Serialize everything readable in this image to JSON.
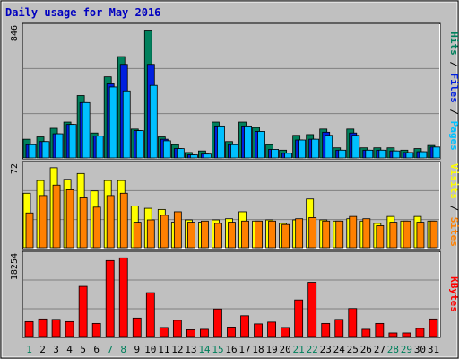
{
  "chart_data": {
    "type": "bar",
    "title": "Daily usage for May 2016",
    "categories": [
      "1",
      "2",
      "3",
      "4",
      "5",
      "6",
      "7",
      "8",
      "9",
      "10",
      "11",
      "12",
      "13",
      "14",
      "15",
      "16",
      "17",
      "18",
      "19",
      "20",
      "21",
      "22",
      "23",
      "24",
      "25",
      "26",
      "27",
      "28",
      "29",
      "30",
      "31"
    ],
    "weekend_days": [
      "1",
      "7",
      "8",
      "14",
      "15",
      "21",
      "22",
      "28",
      "29"
    ],
    "panels": [
      {
        "id": "top",
        "ymax_label": "846",
        "ylim": [
          0,
          846
        ],
        "series": [
          {
            "name": "Hits",
            "color": "#00805c",
            "values": [
              120,
              135,
              190,
              230,
              400,
              160,
              520,
              650,
              185,
              820,
              135,
              85,
              35,
              45,
              230,
              105,
              230,
              195,
              85,
              50,
              145,
              150,
              185,
              65,
              185,
              65,
              65,
              65,
              50,
              60,
              80
            ]
          },
          {
            "name": "Files",
            "color": "#0020e0",
            "values": [
              85,
              105,
              155,
              215,
              355,
              140,
              475,
              600,
              175,
              600,
              120,
              60,
              20,
              25,
              205,
              85,
              205,
              170,
              55,
              30,
              115,
              120,
              165,
              50,
              160,
              50,
              50,
              45,
              35,
              40,
              70
            ]
          },
          {
            "name": "Pages",
            "color": "#00c0ff",
            "values": [
              85,
              105,
              155,
              215,
              355,
              140,
              455,
              430,
              175,
              465,
              110,
              60,
              20,
              25,
              205,
              85,
              205,
              170,
              55,
              30,
              115,
              120,
              145,
              50,
              145,
              50,
              50,
              45,
              35,
              40,
              70
            ]
          }
        ],
        "legend": [
          {
            "text": "Hits",
            "color": "#00805c"
          },
          {
            "text": " / ",
            "color": "#000000"
          },
          {
            "text": "Files",
            "color": "#0020e0"
          },
          {
            "text": " / ",
            "color": "#000000"
          },
          {
            "text": "Pages",
            "color": "#00c0ff"
          }
        ]
      },
      {
        "id": "middle",
        "ymax_label": "72",
        "ylim": [
          0,
          72
        ],
        "series": [
          {
            "name": "Visits",
            "color": "#ffff00",
            "values": [
              47,
              58,
              69,
              59,
              64,
              49,
              58,
              58,
              36,
              34,
              33,
              22,
              24,
              22,
              24,
              25,
              31,
              23,
              24,
              21,
              24,
              42,
              24,
              23,
              25,
              23,
              21,
              27,
              23,
              27,
              23
            ]
          },
          {
            "name": "Sites",
            "color": "#ff8000",
            "values": [
              30,
              45,
              54,
              50,
              43,
              35,
              45,
              47,
              22,
              24,
              28,
              31,
              22,
              23,
              21,
              22,
              23,
              23,
              23,
              20,
              25,
              26,
              23,
              23,
              27,
              25,
              19,
              22,
              23,
              22,
              23
            ]
          }
        ],
        "legend": [
          {
            "text": "Visits",
            "color": "#ffff00"
          },
          {
            "text": " / ",
            "color": "#000000"
          },
          {
            "text": "Sites",
            "color": "#ff8000"
          }
        ]
      },
      {
        "id": "bottom",
        "ymax_label": "18254",
        "ylim": [
          0,
          18254
        ],
        "series": [
          {
            "name": "KBytes",
            "color": "#ff0000",
            "values": [
              3300,
              3900,
              3800,
              3300,
              11100,
              2900,
              16800,
              17400,
              4100,
              9700,
              2000,
              3600,
              1500,
              1600,
              6100,
              2100,
              4600,
              2800,
              3200,
              2000,
              8100,
              12000,
              2900,
              3800,
              6200,
              1600,
              2900,
              800,
              800,
              1800,
              3900
            ]
          }
        ],
        "legend": [
          {
            "text": "KBytes",
            "color": "#ff0000"
          }
        ]
      }
    ]
  }
}
